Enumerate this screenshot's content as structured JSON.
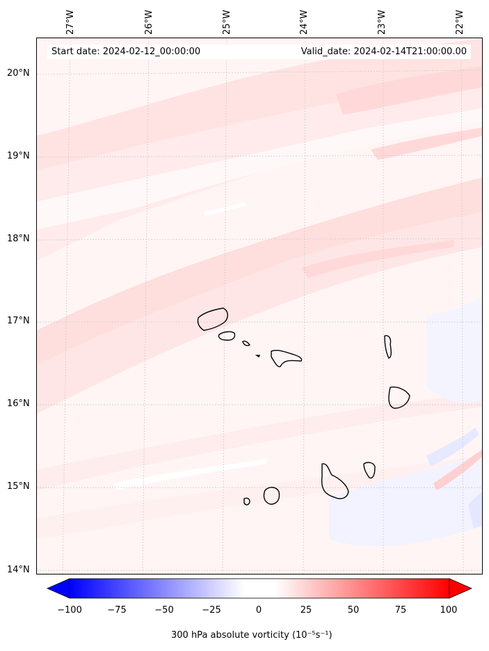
{
  "start_date": "Start date: 2024-02-12_00:00:00",
  "valid_date": "Valid_date: 2024-02-14T21:00:00.00",
  "lat_labels": [
    "20°N",
    "19°N",
    "18°N",
    "17°N",
    "16°N",
    "15°N",
    "14°N"
  ],
  "lon_labels": [
    "27°W",
    "26°W",
    "25°W",
    "24°W",
    "23°W",
    "22°W"
  ],
  "colorbar": {
    "label": "300 hPa absolute vorticity (10⁻⁵s⁻¹)",
    "ticks": [
      "−100",
      "−75",
      "−50",
      "−25",
      "0",
      "25",
      "50",
      "75",
      "100"
    ],
    "min": -100,
    "max": 100,
    "low_color": "#0000ff",
    "mid_color": "#ffffff",
    "high_color": "#ff0000"
  },
  "field_colors": {
    "background": "#fff5f5",
    "light_pink": "#ffe3e3",
    "pink": "#ffd4d4",
    "white": "#ffffff",
    "light_blue": "#eef0ff",
    "blue": "#e0e4ff"
  }
}
